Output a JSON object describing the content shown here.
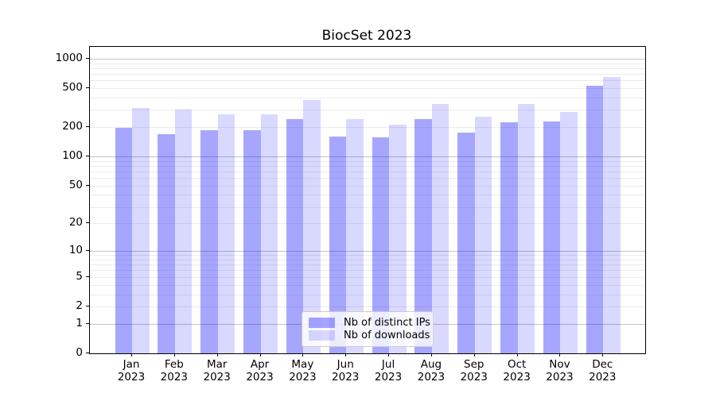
{
  "title": "BiocSet 2023",
  "chart_data": {
    "type": "bar",
    "title": "BiocSet 2023",
    "x_categories": [
      "Jan",
      "Feb",
      "Mar",
      "Apr",
      "May",
      "Jun",
      "Jul",
      "Aug",
      "Sep",
      "Oct",
      "Nov",
      "Dec"
    ],
    "x_year": "2023",
    "series": [
      {
        "name": "Nb of distinct IPs",
        "color": "rgba(0,0,255,0.35)",
        "values": [
          195,
          168,
          187,
          186,
          240,
          161,
          156,
          243,
          175,
          225,
          229,
          526
        ]
      },
      {
        "name": "Nb of downloads",
        "color": "rgba(0,0,255,0.15)",
        "values": [
          313,
          305,
          268,
          268,
          380,
          242,
          211,
          344,
          255,
          346,
          284,
          654
        ]
      }
    ],
    "y_ticks": [
      1000,
      500,
      200,
      100,
      50,
      20,
      10,
      5,
      2,
      1,
      0
    ],
    "y_scale": "log10(value+1)",
    "ylim": [
      0,
      1300
    ],
    "grid": true,
    "major_grid_values": [
      1,
      10,
      100,
      1000
    ],
    "legend": {
      "items": [
        "Nb of distinct IPs",
        "Nb of downloads"
      ],
      "position": "lower center"
    },
    "colors": {
      "distinct_ips_rendered": "#a6a6ff",
      "downloads_rendered": "#d9d9ff",
      "major_grid": "#c4c4c4",
      "minor_grid": "#ececec"
    }
  }
}
